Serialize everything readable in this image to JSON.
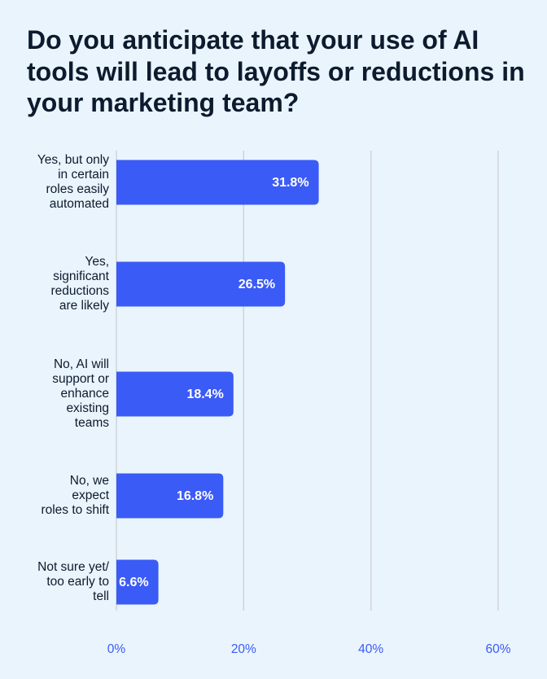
{
  "chart_data": {
    "type": "bar",
    "orientation": "horizontal",
    "title": "Do you anticipate that your use of AI tools will lead to layoffs or reductions in your marketing team?",
    "categories": [
      "Yes, but only\nin certain\nroles easily\nautomated",
      "Yes,\nsignificant\nreductions\nare likely",
      "No, AI will\nsupport or\nenhance\nexisting\nteams",
      "No, we\nexpect\nroles to shift",
      "Not sure yet/\ntoo early to\ntell"
    ],
    "values": [
      31.8,
      26.5,
      18.4,
      16.8,
      6.6
    ],
    "value_labels": [
      "31.8%",
      "26.5%",
      "18.4%",
      "16.8%",
      "6.6%"
    ],
    "color": "#3b5bf6",
    "xlim": [
      0,
      60
    ],
    "xticks": [
      {
        "value": 0,
        "label": "0%"
      },
      {
        "value": 20,
        "label": "20%"
      },
      {
        "value": 40,
        "label": "40%"
      },
      {
        "value": 60,
        "label": "60%"
      }
    ],
    "grid": true
  }
}
